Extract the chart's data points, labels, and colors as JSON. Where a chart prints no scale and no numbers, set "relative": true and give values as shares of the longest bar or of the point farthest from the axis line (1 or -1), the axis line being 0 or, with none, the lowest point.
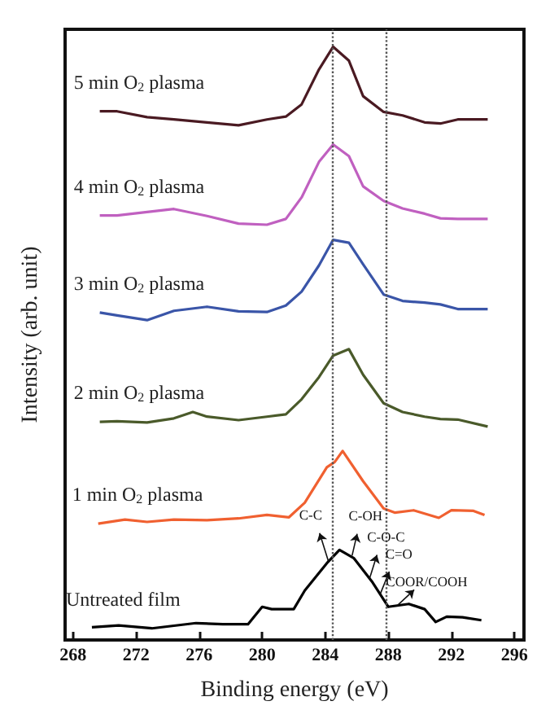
{
  "chart_data": {
    "type": "line",
    "relative": true,
    "xlabel": "Binding energy (eV)",
    "ylabel": "Intensity (arb. unit)",
    "xlim": [
      267.5,
      296.6
    ],
    "xticks": [
      268,
      272,
      276,
      280,
      284,
      288,
      292,
      296
    ],
    "grid": false,
    "marker": "none",
    "line_style": "solid",
    "series": [
      {
        "name": "5 min O$_{2}$ plasma",
        "color": "#4a1a22",
        "x": [
          269.7,
          270.8,
          272.7,
          274.4,
          276.5,
          278.5,
          280.3,
          281.5,
          282.5,
          283.6,
          284.5,
          285.5,
          286.4,
          287.7,
          288.9,
          290.3,
          291.3,
          292.4,
          294.3
        ],
        "values": [
          0.889,
          0.889,
          0.879,
          0.875,
          0.87,
          0.865,
          0.875,
          0.88,
          0.901,
          0.961,
          1.0,
          0.976,
          0.915,
          0.888,
          0.882,
          0.87,
          0.868,
          0.875,
          0.875
        ]
      },
      {
        "name": "4 min O$_{2}$ plasma",
        "color": "#c060c0",
        "x": [
          269.7,
          270.8,
          272.7,
          274.4,
          276.5,
          278.5,
          280.3,
          281.5,
          282.5,
          283.6,
          284.5,
          285.5,
          286.4,
          287.7,
          288.9,
          290.3,
          291.3,
          292.4,
          294.3
        ],
        "values": [
          0.71,
          0.71,
          0.716,
          0.721,
          0.709,
          0.696,
          0.694,
          0.704,
          0.741,
          0.802,
          0.832,
          0.812,
          0.76,
          0.735,
          0.722,
          0.713,
          0.705,
          0.704,
          0.704
        ]
      },
      {
        "name": "3 min O$_{2}$ plasma",
        "color": "#3a55a8",
        "x": [
          269.7,
          270.8,
          272.7,
          274.4,
          276.5,
          278.5,
          280.3,
          281.5,
          282.5,
          283.6,
          284.5,
          285.5,
          286.4,
          287.7,
          288.9,
          290.3,
          291.3,
          292.4,
          294.3
        ],
        "values": [
          0.543,
          0.538,
          0.53,
          0.546,
          0.553,
          0.545,
          0.544,
          0.555,
          0.579,
          0.624,
          0.668,
          0.663,
          0.626,
          0.574,
          0.563,
          0.56,
          0.557,
          0.549,
          0.549
        ]
      },
      {
        "name": "2 min O$_{2}$ plasma",
        "color": "#4a5a2a",
        "x": [
          269.7,
          270.8,
          272.7,
          274.4,
          275.6,
          276.5,
          278.5,
          280.3,
          281.5,
          282.5,
          283.6,
          284.5,
          285.5,
          286.4,
          287.7,
          288.9,
          290.3,
          291.3,
          292.4,
          294.3
        ],
        "values": [
          0.355,
          0.356,
          0.354,
          0.361,
          0.372,
          0.364,
          0.358,
          0.364,
          0.368,
          0.394,
          0.432,
          0.469,
          0.48,
          0.436,
          0.387,
          0.372,
          0.364,
          0.36,
          0.359,
          0.347
        ]
      },
      {
        "name": "1 min O$_{2}$ plasma",
        "color": "#f06030",
        "x": [
          269.6,
          271.3,
          272.7,
          274.4,
          276.5,
          278.5,
          280.3,
          281.7,
          282.7,
          284.1,
          284.6,
          285.1,
          286.4,
          287.7,
          288.4,
          289.6,
          291.2,
          292.0,
          293.4,
          294.1
        ],
        "values": [
          0.18,
          0.187,
          0.183,
          0.187,
          0.186,
          0.189,
          0.195,
          0.191,
          0.216,
          0.277,
          0.286,
          0.305,
          0.253,
          0.206,
          0.199,
          0.203,
          0.19,
          0.203,
          0.202,
          0.195
        ]
      },
      {
        "name": "Untreated film",
        "color": "#000000",
        "x": [
          269.2,
          270.9,
          273.0,
          275.8,
          277.5,
          279.1,
          280.0,
          280.6,
          282.0,
          282.7,
          284.1,
          284.9,
          285.8,
          287.0,
          288.0,
          289.3,
          290.3,
          291.0,
          291.7,
          292.7,
          293.9
        ],
        "values": [
          0.002,
          0.005,
          0.0,
          0.009,
          0.007,
          0.007,
          0.037,
          0.033,
          0.033,
          0.065,
          0.112,
          0.135,
          0.121,
          0.079,
          0.037,
          0.042,
          0.033,
          0.011,
          0.02,
          0.019,
          0.014
        ]
      }
    ],
    "ref_lines": [
      {
        "axis": "x",
        "value": 284.5,
        "color": "#555555",
        "line_style": "dotted"
      },
      {
        "axis": "x",
        "value": 287.9,
        "color": "#555555",
        "line_style": "dotted"
      }
    ],
    "annotations": [
      {
        "text": "C-C",
        "x": 284.2,
        "y": 0.115
      },
      {
        "text": "C-OH",
        "x": 285.7,
        "y": 0.125
      },
      {
        "text": "C-O-C",
        "x": 286.8,
        "y": 0.085
      },
      {
        "text": "C=O",
        "x": 287.5,
        "y": 0.06
      },
      {
        "text": "COOR/COOH",
        "x": 288.6,
        "y": 0.04
      }
    ]
  }
}
